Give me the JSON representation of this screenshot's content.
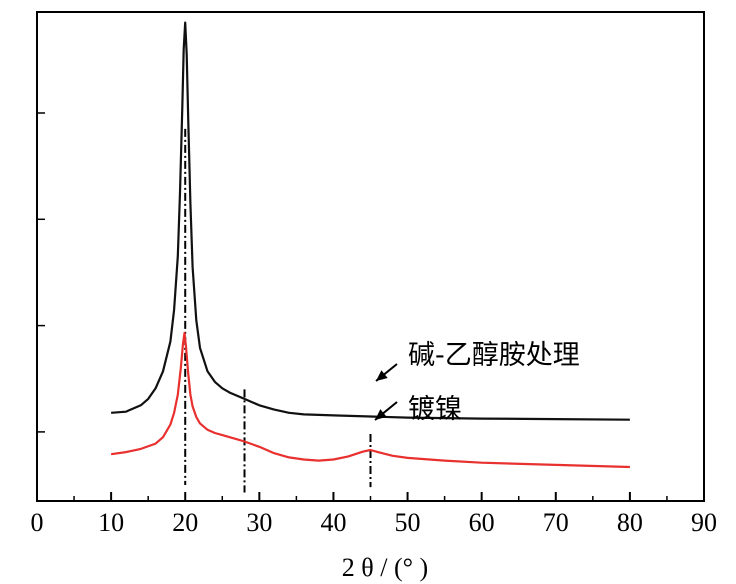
{
  "chart_data": {
    "type": "line",
    "title": "",
    "xlabel": "2 θ / (° )",
    "ylabel": "",
    "xlim": [
      0,
      90
    ],
    "xticks": [
      0,
      10,
      20,
      30,
      40,
      50,
      60,
      70,
      80,
      90
    ],
    "yticks_labeled": false,
    "grid": false,
    "legend": "none",
    "series": [
      {
        "name": "碱-乙醇胺处理",
        "color": "#111111",
        "x": [
          10,
          12,
          14,
          15,
          16,
          17,
          18,
          18.5,
          19,
          19.3,
          19.6,
          19.8,
          20,
          20.2,
          20.4,
          20.7,
          21,
          21.5,
          22,
          23,
          24,
          25,
          26,
          27,
          28,
          29,
          30,
          32,
          34,
          36,
          40,
          45,
          50,
          60,
          70,
          80
        ],
        "values": [
          2.3,
          2.4,
          3.0,
          3.6,
          4.6,
          6.2,
          9.0,
          12.0,
          17.0,
          23.0,
          31.0,
          36.5,
          39.0,
          36.0,
          30.0,
          22.0,
          16.0,
          11.0,
          8.4,
          6.2,
          5.2,
          4.6,
          4.2,
          3.9,
          3.6,
          3.3,
          3.0,
          2.6,
          2.3,
          2.15,
          2.05,
          1.95,
          1.85,
          1.75,
          1.7,
          1.65
        ]
      },
      {
        "name": "镀镍",
        "color": "#e8302e",
        "x": [
          10,
          12,
          14,
          16,
          17,
          18,
          18.5,
          19,
          19.4,
          19.7,
          19.9,
          20.1,
          20.4,
          20.7,
          21,
          21.5,
          22,
          23,
          24,
          25,
          26,
          27,
          28,
          30,
          32,
          34,
          36,
          38,
          40,
          42,
          44,
          45,
          46,
          48,
          50,
          55,
          60,
          70,
          80
        ],
        "values": [
          -1.6,
          -1.4,
          -1.1,
          -0.6,
          0.0,
          1.2,
          2.3,
          4.0,
          6.5,
          8.8,
          9.8,
          8.5,
          6.0,
          4.0,
          2.9,
          1.9,
          1.3,
          0.7,
          0.4,
          0.2,
          0.0,
          -0.2,
          -0.4,
          -0.9,
          -1.5,
          -1.9,
          -2.1,
          -2.2,
          -2.1,
          -1.8,
          -1.35,
          -1.2,
          -1.4,
          -1.75,
          -1.95,
          -2.2,
          -2.4,
          -2.6,
          -2.8
        ]
      }
    ],
    "reference_lines": [
      {
        "x": 20,
        "style": "dash-dot"
      },
      {
        "x": 28,
        "style": "dash-dot"
      },
      {
        "x": 45,
        "style": "dash-dot"
      }
    ],
    "annotations": [
      {
        "text": "碱-乙醇胺处理",
        "points_to_x": 46
      },
      {
        "text": "镀镍",
        "points_to_x": 46
      }
    ]
  }
}
